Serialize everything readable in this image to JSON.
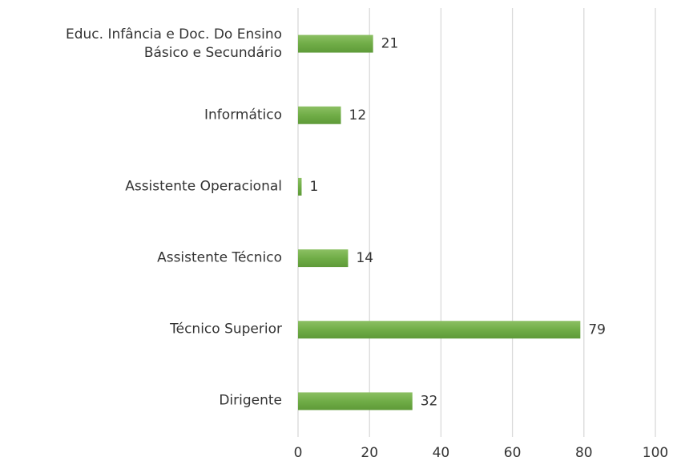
{
  "chart_data": {
    "type": "bar",
    "orientation": "horizontal",
    "categories": [
      "Educ. Infância e Doc. Do Ensino\nBásico e Secundário",
      "Informático",
      "Assistente Operacional",
      "Assistente Técnico",
      "Técnico Superior",
      "Dirigente"
    ],
    "values": [
      21,
      12,
      1,
      14,
      79,
      32
    ],
    "color": "#70ad47",
    "xlim": [
      0,
      100
    ],
    "xticks": [
      0,
      20,
      40,
      60,
      80,
      100
    ],
    "grid": true
  }
}
